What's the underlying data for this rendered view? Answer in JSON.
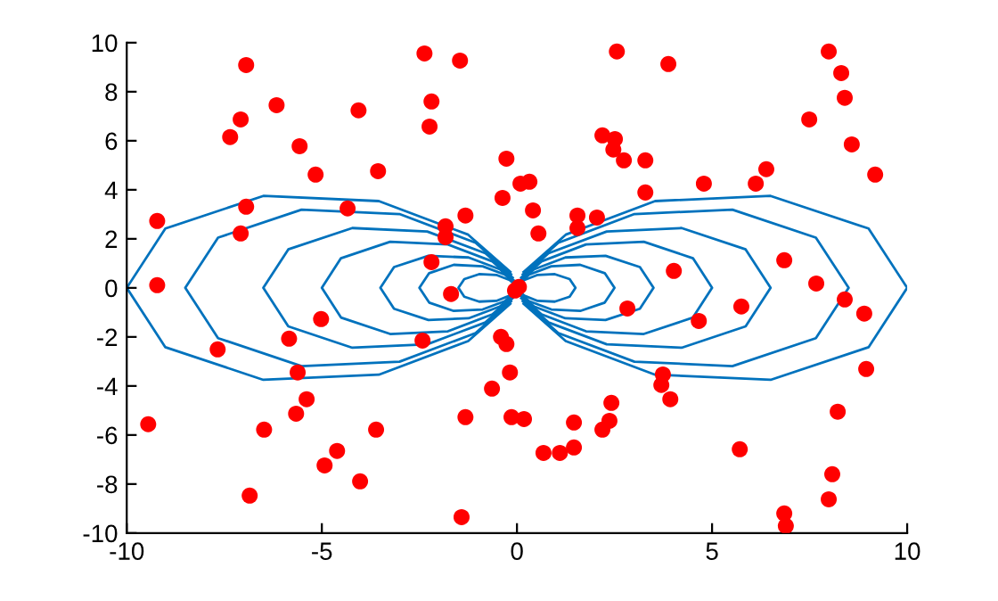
{
  "chart_data": {
    "type": "scatter",
    "xlim": [
      -10,
      10
    ],
    "ylim": [
      -10,
      10
    ],
    "xticks": [
      -10,
      -5,
      0,
      5,
      10
    ],
    "yticks": [
      -10,
      -8,
      -6,
      -4,
      -2,
      0,
      2,
      4,
      6,
      8,
      10
    ],
    "grid": false,
    "series": [
      {
        "color": "#ff0000",
        "marker": "circle",
        "x": [
          -6.94,
          -2.37,
          -1.46,
          2.56,
          3.88,
          7.99,
          8.31,
          8.4,
          -6.16,
          -4.06,
          -2.19,
          -7.08,
          -7.35,
          -2.24,
          -5.57,
          -0.27,
          2.19,
          2.51,
          2.47,
          2.74,
          3.29,
          7.49,
          8.58,
          9.18,
          6.39,
          6.12,
          4.79,
          3.29,
          -5.16,
          -3.56,
          0.09,
          0.32,
          -0.37,
          0.41,
          -9.22,
          -6.94,
          -4.34,
          -1.32,
          -1.83,
          -1.83,
          -7.08,
          0.55,
          1.55,
          2.05,
          1.55,
          -2.19,
          4.02,
          6.85,
          -9.22,
          -1.69,
          -0.05,
          0.05,
          7.67,
          8.4,
          8.9,
          5.75,
          2.83,
          -5.02,
          4.66,
          -0.41,
          -0.27,
          -2.42,
          -5.84,
          -7.67,
          8.95,
          -5.62,
          -0.18,
          3.74,
          3.7,
          -0.64,
          3.93,
          -5.39,
          2.42,
          -5.66,
          8.22,
          -1.32,
          -0.14,
          0.18,
          1.46,
          2.19,
          2.37,
          -9.45,
          -6.48,
          -3.61,
          -4.61,
          -4.93,
          1.46,
          0.68,
          1.1,
          5.71,
          -4.02,
          8.08,
          -6.85,
          7.99,
          -1.42,
          6.85,
          6.89
        ],
        "values": [
          9.09,
          9.56,
          9.27,
          9.64,
          9.13,
          9.64,
          8.76,
          7.75,
          7.45,
          7.24,
          7.6,
          6.87,
          6.15,
          6.58,
          5.78,
          5.27,
          6.22,
          6.07,
          5.64,
          5.2,
          5.2,
          6.87,
          5.85,
          4.62,
          4.84,
          4.25,
          4.25,
          3.89,
          4.62,
          4.76,
          4.25,
          4.33,
          3.67,
          3.16,
          2.73,
          3.31,
          3.24,
          2.95,
          2.51,
          2.07,
          2.22,
          2.22,
          2.95,
          2.87,
          2.44,
          1.05,
          0.69,
          1.13,
          0.11,
          -0.25,
          -0.11,
          0.04,
          0.18,
          -0.47,
          -1.05,
          -0.76,
          -0.84,
          -1.27,
          -1.35,
          -2.0,
          -2.29,
          -2.15,
          -2.07,
          -2.51,
          -3.31,
          -3.45,
          -3.45,
          -3.53,
          -3.96,
          -4.11,
          -4.54,
          -4.54,
          -4.69,
          -5.13,
          -5.05,
          -5.27,
          -5.27,
          -5.35,
          -5.49,
          -5.78,
          -5.42,
          -5.56,
          -5.78,
          -5.78,
          -6.65,
          -7.24,
          -6.51,
          -6.73,
          -6.73,
          -6.58,
          -7.89,
          -7.6,
          -8.47,
          -8.62,
          -9.35,
          -9.2,
          -9.71
        ]
      },
      {
        "type": "line",
        "color": "#0072bd",
        "x": [
          0.03,
          0.19,
          0.53,
          0.97,
          1.35,
          1.5,
          1.35,
          0.97,
          0.53,
          0.19,
          0.03
        ],
        "values": [
          0.1,
          0.32,
          0.53,
          0.56,
          0.36,
          0,
          -0.36,
          -0.56,
          -0.53,
          -0.32,
          -0.1
        ]
      },
      {
        "type": "line",
        "color": "#0072bd",
        "x": [
          -0.03,
          -0.19,
          -0.53,
          -0.97,
          -1.35,
          -1.5,
          -1.35,
          -0.97,
          -0.53,
          -0.19,
          -0.03
        ],
        "values": [
          0.1,
          0.32,
          0.53,
          0.56,
          0.36,
          0,
          -0.36,
          -0.56,
          -0.53,
          -0.32,
          -0.1
        ]
      },
      {
        "type": "line",
        "color": "#0072bd",
        "x": [
          0.04,
          0.31,
          0.88,
          1.62,
          2.25,
          2.5,
          2.25,
          1.62,
          0.88,
          0.31,
          0.04
        ],
        "values": [
          0.16,
          0.54,
          0.88,
          0.94,
          0.6,
          0,
          -0.6,
          -0.94,
          -0.88,
          -0.54,
          -0.16
        ]
      },
      {
        "type": "line",
        "color": "#0072bd",
        "x": [
          -0.04,
          -0.31,
          -0.88,
          -1.62,
          -2.25,
          -2.5,
          -2.25,
          -1.62,
          -0.88,
          -0.31,
          -0.04
        ],
        "values": [
          0.16,
          0.54,
          0.88,
          0.94,
          0.6,
          0,
          -0.6,
          -0.94,
          -0.88,
          -0.54,
          -0.16
        ]
      },
      {
        "type": "line",
        "color": "#0072bd",
        "x": [
          0.06,
          0.44,
          1.24,
          2.27,
          3.15,
          3.5,
          3.15,
          2.27,
          1.24,
          0.44,
          0.06
        ],
        "values": [
          0.23,
          0.76,
          1.24,
          1.31,
          0.85,
          0,
          -0.85,
          -1.31,
          -1.24,
          -0.76,
          -0.23
        ]
      },
      {
        "type": "line",
        "color": "#0072bd",
        "x": [
          -0.06,
          -0.44,
          -1.24,
          -2.27,
          -3.15,
          -3.5,
          -3.15,
          -2.27,
          -1.24,
          -0.44,
          -0.06
        ],
        "values": [
          0.23,
          0.76,
          1.24,
          1.31,
          0.85,
          0,
          -0.85,
          -1.31,
          -1.24,
          -0.76,
          -0.23
        ]
      },
      {
        "type": "line",
        "color": "#0072bd",
        "x": [
          0.09,
          0.63,
          1.77,
          3.25,
          4.51,
          5,
          4.51,
          3.25,
          1.77,
          0.63,
          0.09
        ],
        "values": [
          0.32,
          1.08,
          1.77,
          1.88,
          1.21,
          0,
          -1.21,
          -1.88,
          -1.77,
          -1.08,
          -0.32
        ]
      },
      {
        "type": "line",
        "color": "#0072bd",
        "x": [
          -0.09,
          -0.63,
          -1.77,
          -3.25,
          -4.51,
          -5,
          -4.51,
          -3.25,
          -1.77,
          -0.63,
          -0.09
        ],
        "values": [
          0.32,
          1.08,
          1.77,
          1.88,
          1.21,
          0,
          -1.21,
          -1.88,
          -1.77,
          -1.08,
          -0.32
        ]
      },
      {
        "type": "line",
        "color": "#0072bd",
        "x": [
          0.11,
          0.81,
          2.3,
          4.22,
          5.86,
          6.5,
          5.86,
          4.22,
          2.3,
          0.81,
          0.11
        ],
        "values": [
          0.42,
          1.41,
          2.3,
          2.44,
          1.57,
          0,
          -1.57,
          -2.44,
          -2.3,
          -1.41,
          -0.42
        ]
      },
      {
        "type": "line",
        "color": "#0072bd",
        "x": [
          -0.11,
          -0.81,
          -2.3,
          -4.22,
          -5.86,
          -6.5,
          -5.86,
          -4.22,
          -2.3,
          -0.81,
          -0.11
        ],
        "values": [
          0.42,
          1.41,
          2.3,
          2.44,
          1.57,
          0,
          -1.57,
          -2.44,
          -2.3,
          -1.41,
          -0.42
        ]
      },
      {
        "type": "line",
        "color": "#0072bd",
        "x": [
          0.15,
          1.06,
          3.01,
          5.52,
          7.66,
          8.5,
          7.66,
          5.52,
          3.01,
          1.06,
          0.15
        ],
        "values": [
          0.55,
          1.84,
          3.01,
          3.19,
          2.05,
          0,
          -2.05,
          -3.19,
          -3.01,
          -1.84,
          -0.55
        ]
      },
      {
        "type": "line",
        "color": "#0072bd",
        "x": [
          -0.15,
          -1.06,
          -3.01,
          -5.52,
          -7.66,
          -8.5,
          -7.66,
          -5.52,
          -3.01,
          -1.06,
          -0.15
        ],
        "values": [
          0.55,
          1.84,
          3.01,
          3.19,
          2.05,
          0,
          -2.05,
          -3.19,
          -3.01,
          -1.84,
          -0.55
        ]
      },
      {
        "type": "line",
        "color": "#0072bd",
        "x": [
          0.17,
          1.25,
          3.54,
          6.5,
          9.01,
          10,
          9.01,
          6.5,
          3.54,
          1.25,
          0.17
        ],
        "values": [
          0.65,
          2.17,
          3.54,
          3.75,
          2.42,
          0,
          -2.42,
          -3.75,
          -3.54,
          -2.17,
          -0.65
        ]
      },
      {
        "type": "line",
        "color": "#0072bd",
        "x": [
          -0.17,
          -1.25,
          -3.54,
          -6.5,
          -9.01,
          -10,
          -9.01,
          -6.5,
          -3.54,
          -1.25,
          -0.17
        ],
        "values": [
          0.65,
          2.17,
          3.54,
          3.75,
          2.42,
          0,
          -2.42,
          -3.75,
          -3.54,
          -2.17,
          -0.65
        ]
      }
    ]
  }
}
